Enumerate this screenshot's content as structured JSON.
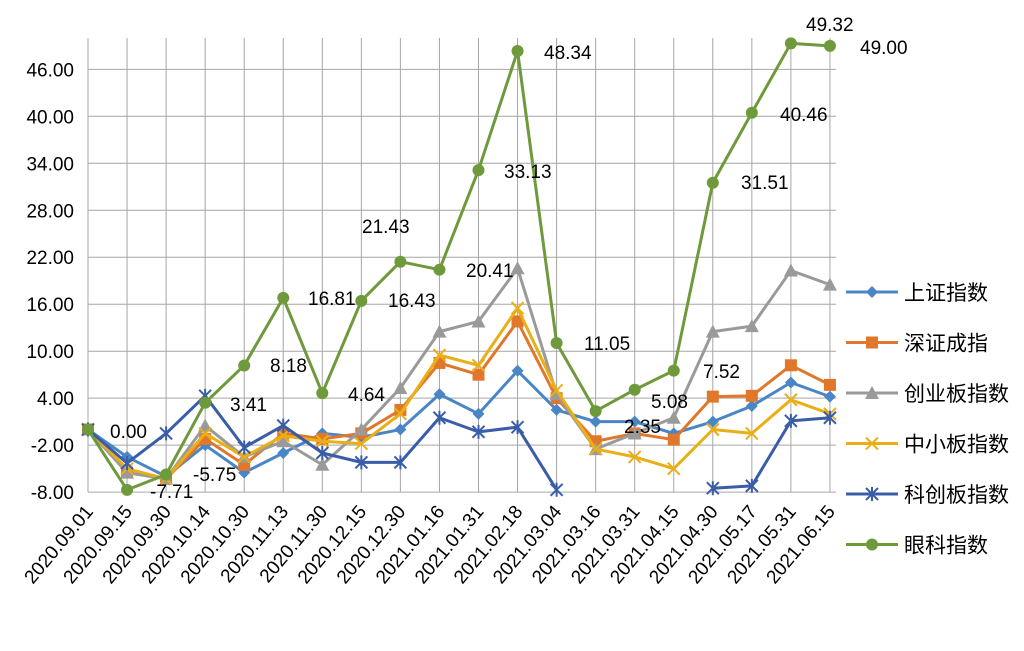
{
  "chart_data": {
    "type": "line",
    "title": "",
    "xlabel": "",
    "ylabel": "",
    "ylim": [
      -8,
      49.32
    ],
    "y_ticks": [
      "-8.00",
      "-2.00",
      "4.00",
      "10.00",
      "16.00",
      "22.00",
      "28.00",
      "34.00",
      "40.00",
      "46.00"
    ],
    "grid": "vertical and horizontal",
    "legend_position": "right",
    "categories": [
      "2020.09.01",
      "2020.09.15",
      "2020.09.30",
      "2020.10.14",
      "2020.10.30",
      "2020.11.13",
      "2020.11.30",
      "2020.12.15",
      "2020.12.30",
      "2021.01.16",
      "2021.01.31",
      "2021.02.18",
      "2021.03.04",
      "2021.03.16",
      "2021.03.31",
      "2021.04.15",
      "2021.04.30",
      "2021.05.17",
      "2021.05.31",
      "2021.06.15"
    ],
    "series": [
      {
        "name": "上证指数",
        "color": "#4a86c6",
        "marker": "diamond",
        "values": [
          0.0,
          -3.5,
          -6.0,
          -2.0,
          -5.5,
          -3.0,
          -0.5,
          -1.0,
          0.0,
          4.5,
          2.0,
          7.5,
          2.5,
          1.0,
          1.0,
          -0.5,
          1.0,
          3.0,
          6.0,
          4.2
        ]
      },
      {
        "name": "深证成指",
        "color": "#e0772a",
        "marker": "square",
        "values": [
          0.0,
          -5.5,
          -6.3,
          -1.2,
          -4.5,
          -0.5,
          -1.2,
          -0.5,
          2.5,
          8.5,
          7.0,
          13.8,
          4.0,
          -1.5,
          -0.5,
          -1.3,
          4.2,
          4.3,
          8.2,
          5.7
        ]
      },
      {
        "name": "创业板指数",
        "color": "#9a9a9a",
        "marker": "triangle",
        "values": [
          0.0,
          -5.5,
          -6.3,
          0.5,
          -3.5,
          -1.5,
          -4.5,
          0.0,
          5.3,
          12.5,
          13.8,
          20.6,
          4.5,
          -2.5,
          -0.5,
          1.5,
          12.5,
          13.2,
          20.3,
          18.5
        ]
      },
      {
        "name": "中小板指数",
        "color": "#eaae16",
        "marker": "x",
        "values": [
          0.0,
          -5.0,
          -6.3,
          -0.5,
          -3.5,
          -0.8,
          -1.5,
          -1.8,
          2.0,
          9.5,
          8.2,
          15.5,
          5.0,
          -2.5,
          -3.5,
          -5.0,
          0.0,
          -0.5,
          3.8,
          2.0
        ]
      },
      {
        "name": "科创板指数",
        "color": "#3a5da8",
        "marker": "asterisk",
        "values": [
          0.0,
          -4.3,
          -0.5,
          4.3,
          -2.3,
          0.5,
          -3.0,
          -4.2,
          -4.2,
          1.5,
          -0.3,
          0.3,
          -7.7,
          null,
          null,
          null,
          -7.5,
          -7.2,
          1.1,
          1.5
        ]
      },
      {
        "name": "眼科指数",
        "color": "#6e9a3c",
        "marker": "circle",
        "values": [
          0.0,
          -7.71,
          -5.75,
          3.41,
          8.18,
          16.81,
          4.64,
          16.43,
          21.43,
          20.41,
          33.13,
          48.34,
          11.05,
          2.35,
          5.08,
          7.52,
          31.51,
          40.46,
          49.32,
          49.0
        ]
      }
    ],
    "annotations": [
      {
        "text": "0.00",
        "color": "#000000"
      },
      {
        "text": "-7.71",
        "color": "#ff0000"
      },
      {
        "text": "-5.75",
        "color": "#ff0000"
      },
      {
        "text": "3.41",
        "color": "#000000"
      },
      {
        "text": "8.18",
        "color": "#000000"
      },
      {
        "text": "16.81",
        "color": "#000000"
      },
      {
        "text": "4.64",
        "color": "#000000"
      },
      {
        "text": "16.43",
        "color": "#000000"
      },
      {
        "text": "21.43",
        "color": "#000000"
      },
      {
        "text": "20.41",
        "color": "#000000"
      },
      {
        "text": "33.13",
        "color": "#000000"
      },
      {
        "text": "48.34",
        "color": "#000000"
      },
      {
        "text": "11.05",
        "color": "#000000"
      },
      {
        "text": "2.35",
        "color": "#000000"
      },
      {
        "text": "5.08",
        "color": "#000000"
      },
      {
        "text": "7.52",
        "color": "#000000"
      },
      {
        "text": "31.51",
        "color": "#000000"
      },
      {
        "text": "40.46",
        "color": "#000000"
      },
      {
        "text": "49.32",
        "color": "#000000"
      },
      {
        "text": "49.00",
        "color": "#000000"
      }
    ]
  }
}
